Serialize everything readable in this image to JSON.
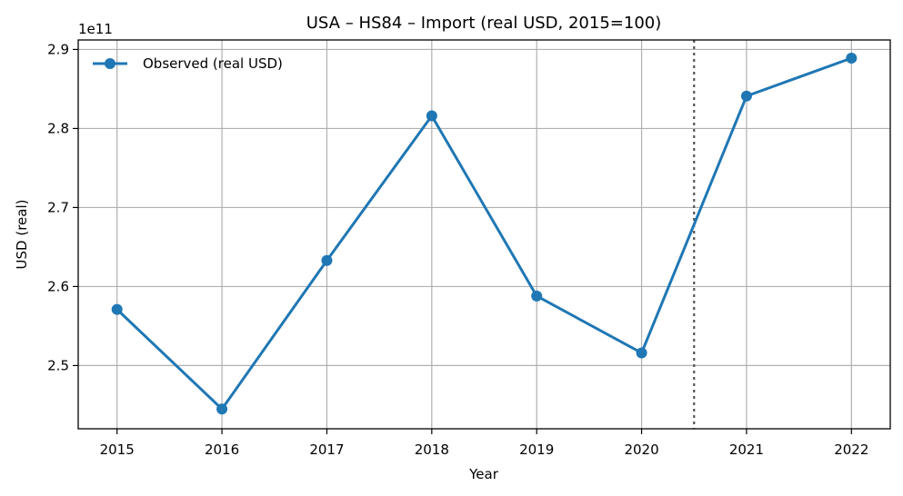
{
  "chart_data": {
    "type": "line",
    "title": "USA – HS84 – Import (real USD, 2015=100)",
    "xlabel": "Year",
    "ylabel": "USD (real)",
    "y_offset_label": "1e11",
    "x": [
      2015,
      2016,
      2017,
      2018,
      2019,
      2020,
      2021,
      2022
    ],
    "x_tick_labels": [
      "2015",
      "2016",
      "2017",
      "2018",
      "2019",
      "2020",
      "2021",
      "2022"
    ],
    "series": [
      {
        "name": "Observed (real USD)",
        "color": "#1f77b4",
        "marker": "circle",
        "values": [
          257100000000,
          244500000000,
          263300000000,
          281600000000,
          258800000000,
          251600000000,
          284100000000,
          288900000000
        ]
      }
    ],
    "y_ticks": [
      2.5,
      2.6,
      2.7,
      2.8,
      2.9
    ],
    "y_tick_labels": [
      "2.5",
      "2.6",
      "2.7",
      "2.8",
      "2.9"
    ],
    "ylim": [
      242000000000,
      291200000000
    ],
    "xlim": [
      2014.63,
      2022.37
    ],
    "vline": {
      "x": 2020.5,
      "style": "dotted",
      "color": "#555555"
    },
    "grid": true,
    "legend_position": "top-left"
  }
}
